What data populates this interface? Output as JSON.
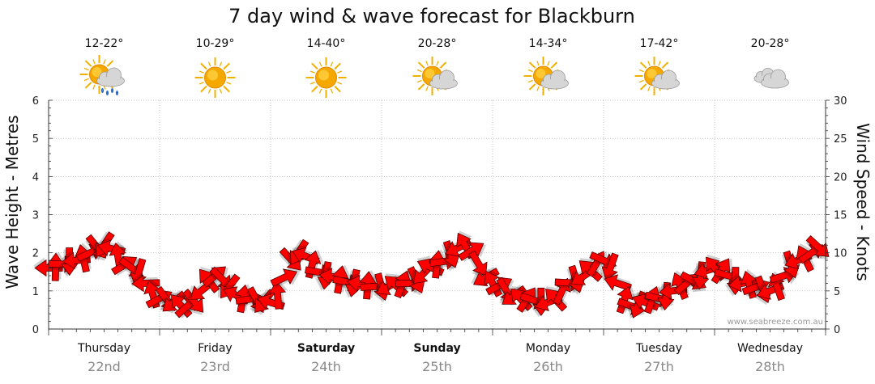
{
  "chart_data": {
    "type": "line",
    "title": "7 day wind & wave forecast for Blackburn",
    "ylabel_left": "Wave Height - Metres",
    "ylabel_right": "Wind Speed - Knots",
    "ylim_left": [
      0,
      6
    ],
    "ylim_right": [
      0,
      30
    ],
    "yticks_left": [
      "0",
      "1",
      "2",
      "3",
      "4",
      "5",
      "6"
    ],
    "yticks_right": [
      "0",
      "5",
      "10",
      "15",
      "20",
      "25",
      "30"
    ],
    "grid": true,
    "watermark": "www.seabreeze.com.au",
    "days": [
      {
        "name": "Thursday",
        "date": "22nd",
        "temp": "12-22°",
        "weather": "sun-cloud-rain-icon",
        "bold": false
      },
      {
        "name": "Friday",
        "date": "23rd",
        "temp": "10-29°",
        "weather": "sun-icon",
        "bold": false
      },
      {
        "name": "Saturday",
        "date": "24th",
        "temp": "14-40°",
        "weather": "sun-icon",
        "bold": true
      },
      {
        "name": "Sunday",
        "date": "25th",
        "temp": "20-28°",
        "weather": "sun-cloud-icon",
        "bold": true
      },
      {
        "name": "Monday",
        "date": "26th",
        "temp": "14-34°",
        "weather": "sun-cloud-icon",
        "bold": false
      },
      {
        "name": "Tuesday",
        "date": "27th",
        "temp": "17-42°",
        "weather": "sun-cloud-icon",
        "bold": false
      },
      {
        "name": "Wednesday",
        "date": "28th",
        "temp": "20-28°",
        "weather": "cloud-icon",
        "bold": false
      }
    ],
    "series": [
      {
        "axis": "right",
        "x_unit": "hours from Thursday 00:00",
        "x": [
          0,
          6,
          12,
          18,
          24,
          30,
          36,
          42,
          48,
          54,
          60,
          66,
          72,
          78,
          84,
          90,
          96,
          102,
          108,
          114,
          120,
          126,
          132,
          138,
          144,
          150,
          156,
          162,
          168
        ],
        "values": [
          8,
          9,
          11,
          8,
          4,
          3,
          7,
          4,
          3.5,
          10,
          7,
          6,
          5.5,
          6,
          8.5,
          11,
          6,
          4,
          3.5,
          6.5,
          9,
          3,
          4,
          6,
          8,
          6,
          5,
          9,
          11
        ]
      }
    ],
    "arrow_color": "#ff0000"
  },
  "colors": {
    "arrow_fill": "#ff0000",
    "arrow_stroke": "#5a0000",
    "grid": "#aaaaaa",
    "sun": "#f5a800",
    "cloud": "#c8c8c8"
  }
}
